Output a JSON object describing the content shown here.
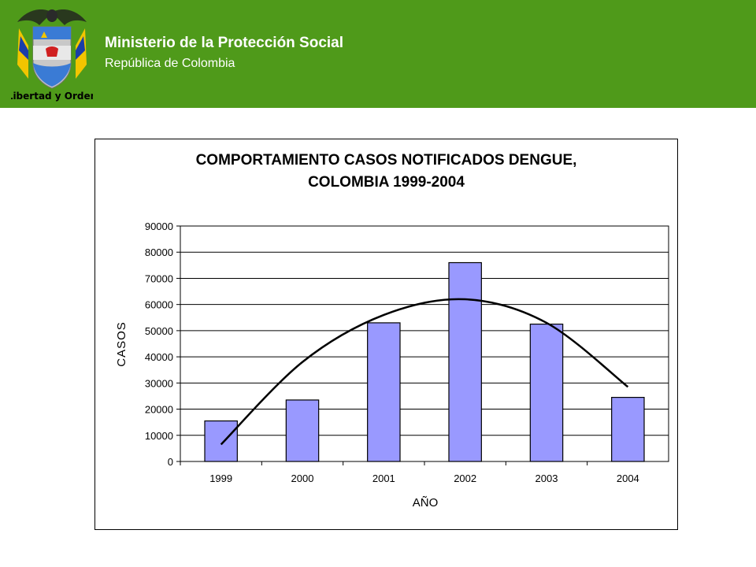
{
  "header": {
    "title": "Ministerio de la Protección Social",
    "subtitle": "República de Colombia",
    "crest_motto": "Libertad y Orden",
    "background_color": "#4f9a1a",
    "crest_icon": "colombia-coat-of-arms-icon"
  },
  "chart_data": {
    "type": "bar",
    "title_line1": "COMPORTAMIENTO CASOS NOTIFICADOS DENGUE,",
    "title_line2": "COLOMBIA 1999-2004",
    "xlabel": "AÑO",
    "ylabel": "CASOS",
    "categories": [
      "1999",
      "2000",
      "2001",
      "2002",
      "2003",
      "2004"
    ],
    "values": [
      15500,
      23500,
      53000,
      76000,
      52500,
      24500
    ],
    "ylim": [
      0,
      90000
    ],
    "yticks": [
      "0",
      "10000",
      "20000",
      "30000",
      "40000",
      "50000",
      "60000",
      "70000",
      "80000",
      "90000"
    ],
    "trendline": {
      "type": "polynomial-2",
      "x": [
        "1999",
        "2000",
        "2001",
        "2002",
        "2003",
        "2004"
      ],
      "values": [
        6500,
        38000,
        56000,
        62000,
        53000,
        28500
      ]
    },
    "bar_color": "#9999ff",
    "grid": true,
    "legend": "none"
  }
}
